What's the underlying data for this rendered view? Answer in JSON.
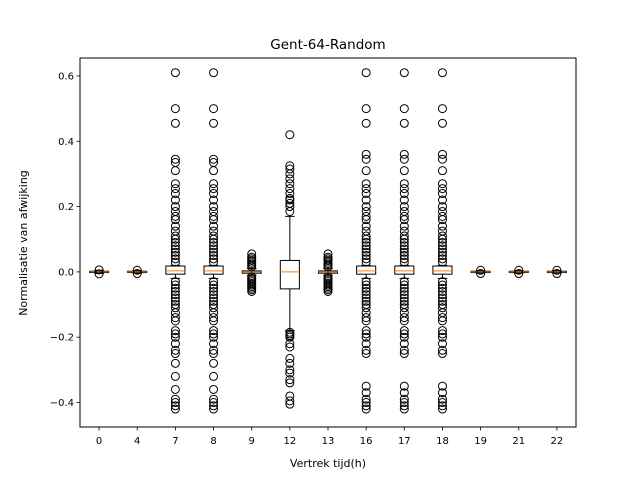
{
  "chart_data": {
    "type": "boxplot",
    "title": "Gent-64-Random",
    "xlabel": "Vertrek tijd(h)",
    "ylabel": "Normalisatie van afwijking",
    "ylim": [
      -0.475,
      0.655
    ],
    "yticks": [
      -0.4,
      -0.2,
      0.0,
      0.2,
      0.4,
      0.6
    ],
    "ytick_labels": [
      "−0.4",
      "−0.2",
      "0.0",
      "0.2",
      "0.4",
      "0.6"
    ],
    "grid": false,
    "colors": {
      "box": "#000000",
      "median": "#ff7f0e",
      "flier": "#000000"
    },
    "categories": [
      "0",
      "4",
      "7",
      "8",
      "9",
      "12",
      "13",
      "16",
      "17",
      "18",
      "19",
      "21",
      "22"
    ],
    "boxes": [
      {
        "q1": -0.002,
        "median": 0.0,
        "q3": 0.002,
        "whislo": -0.005,
        "whishi": 0.005,
        "fliers": [
          -0.006,
          0.006
        ]
      },
      {
        "q1": -0.002,
        "median": 0.0,
        "q3": 0.002,
        "whislo": -0.004,
        "whishi": 0.004,
        "fliers": [
          -0.005,
          0.005
        ]
      },
      {
        "q1": -0.007,
        "median": 0.003,
        "q3": 0.018,
        "whislo": -0.02,
        "whishi": 0.02,
        "fliers": [
          0.61,
          0.5,
          0.455,
          0.345,
          0.335,
          0.31,
          0.27,
          0.255,
          0.24,
          0.22,
          0.2,
          0.185,
          0.17,
          0.16,
          0.14,
          0.125,
          0.11,
          0.1,
          0.09,
          0.08,
          0.07,
          0.06,
          0.05,
          0.04,
          0.03,
          -0.03,
          -0.04,
          -0.05,
          -0.06,
          -0.07,
          -0.08,
          -0.09,
          -0.1,
          -0.11,
          -0.125,
          -0.14,
          -0.15,
          -0.18,
          -0.19,
          -0.2,
          -0.22,
          -0.24,
          -0.25,
          -0.28,
          -0.32,
          -0.36,
          -0.39,
          -0.4,
          -0.41,
          -0.42
        ]
      },
      {
        "q1": -0.007,
        "median": 0.003,
        "q3": 0.018,
        "whislo": -0.02,
        "whishi": 0.02,
        "fliers": [
          0.61,
          0.5,
          0.455,
          0.345,
          0.335,
          0.31,
          0.27,
          0.255,
          0.24,
          0.22,
          0.2,
          0.185,
          0.17,
          0.16,
          0.14,
          0.125,
          0.11,
          0.1,
          0.09,
          0.08,
          0.07,
          0.06,
          0.05,
          0.04,
          0.03,
          -0.03,
          -0.04,
          -0.05,
          -0.06,
          -0.07,
          -0.08,
          -0.09,
          -0.1,
          -0.11,
          -0.125,
          -0.14,
          -0.15,
          -0.18,
          -0.19,
          -0.2,
          -0.22,
          -0.24,
          -0.25,
          -0.28,
          -0.32,
          -0.36,
          -0.39,
          -0.4,
          -0.41,
          -0.42
        ]
      },
      {
        "q1": -0.004,
        "median": 0.0,
        "q3": 0.003,
        "whislo": -0.01,
        "whishi": 0.01,
        "fliers": [
          0.055,
          0.045,
          0.04,
          0.035,
          0.03,
          0.025,
          0.02,
          0.015,
          -0.015,
          -0.02,
          -0.025,
          -0.03,
          -0.035,
          -0.04,
          -0.045,
          -0.05,
          -0.055,
          -0.06
        ]
      },
      {
        "q1": -0.052,
        "median": 0.0,
        "q3": 0.035,
        "whislo": -0.18,
        "whishi": 0.17,
        "fliers": [
          0.42,
          0.325,
          0.315,
          0.3,
          0.285,
          0.27,
          0.255,
          0.24,
          0.225,
          0.22,
          0.21,
          0.2,
          0.185,
          -0.185,
          -0.19,
          -0.195,
          -0.2,
          -0.22,
          -0.23,
          -0.265,
          -0.28,
          -0.3,
          -0.31,
          -0.33,
          -0.34,
          -0.38,
          -0.395,
          -0.405
        ]
      },
      {
        "q1": -0.004,
        "median": 0.0,
        "q3": 0.003,
        "whislo": -0.01,
        "whishi": 0.01,
        "fliers": [
          0.055,
          0.045,
          0.04,
          0.035,
          0.03,
          0.025,
          0.02,
          0.015,
          -0.015,
          -0.02,
          -0.025,
          -0.03,
          -0.035,
          -0.04,
          -0.045,
          -0.05,
          -0.055,
          -0.06
        ]
      },
      {
        "q1": -0.007,
        "median": 0.003,
        "q3": 0.018,
        "whislo": -0.02,
        "whishi": 0.02,
        "fliers": [
          0.61,
          0.5,
          0.455,
          0.36,
          0.345,
          0.31,
          0.27,
          0.255,
          0.24,
          0.22,
          0.2,
          0.185,
          0.17,
          0.16,
          0.14,
          0.125,
          0.11,
          0.1,
          0.09,
          0.08,
          0.07,
          0.06,
          0.05,
          0.04,
          0.03,
          -0.03,
          -0.04,
          -0.05,
          -0.06,
          -0.07,
          -0.08,
          -0.09,
          -0.1,
          -0.11,
          -0.125,
          -0.14,
          -0.15,
          -0.18,
          -0.19,
          -0.2,
          -0.22,
          -0.24,
          -0.25,
          -0.35,
          -0.37,
          -0.39,
          -0.4,
          -0.41,
          -0.42
        ]
      },
      {
        "q1": -0.007,
        "median": 0.003,
        "q3": 0.018,
        "whislo": -0.02,
        "whishi": 0.02,
        "fliers": [
          0.61,
          0.5,
          0.455,
          0.36,
          0.345,
          0.31,
          0.27,
          0.255,
          0.24,
          0.22,
          0.2,
          0.185,
          0.17,
          0.16,
          0.14,
          0.125,
          0.11,
          0.1,
          0.09,
          0.08,
          0.07,
          0.06,
          0.05,
          0.04,
          0.03,
          -0.03,
          -0.04,
          -0.05,
          -0.06,
          -0.07,
          -0.08,
          -0.09,
          -0.1,
          -0.11,
          -0.125,
          -0.14,
          -0.15,
          -0.18,
          -0.19,
          -0.2,
          -0.22,
          -0.24,
          -0.25,
          -0.35,
          -0.37,
          -0.39,
          -0.4,
          -0.41,
          -0.42
        ]
      },
      {
        "q1": -0.007,
        "median": 0.003,
        "q3": 0.018,
        "whislo": -0.02,
        "whishi": 0.02,
        "fliers": [
          0.61,
          0.5,
          0.455,
          0.36,
          0.345,
          0.31,
          0.27,
          0.255,
          0.24,
          0.22,
          0.2,
          0.185,
          0.17,
          0.16,
          0.14,
          0.125,
          0.11,
          0.1,
          0.09,
          0.08,
          0.07,
          0.06,
          0.05,
          0.04,
          0.03,
          -0.03,
          -0.04,
          -0.05,
          -0.06,
          -0.07,
          -0.08,
          -0.09,
          -0.1,
          -0.11,
          -0.125,
          -0.14,
          -0.15,
          -0.18,
          -0.19,
          -0.2,
          -0.22,
          -0.24,
          -0.25,
          -0.35,
          -0.37,
          -0.39,
          -0.4,
          -0.41,
          -0.42
        ]
      },
      {
        "q1": -0.002,
        "median": 0.0,
        "q3": 0.002,
        "whislo": -0.004,
        "whishi": 0.004,
        "fliers": [
          -0.005,
          0.005
        ]
      },
      {
        "q1": -0.002,
        "median": 0.0,
        "q3": 0.002,
        "whislo": -0.004,
        "whishi": 0.004,
        "fliers": [
          -0.005,
          0.005
        ]
      },
      {
        "q1": -0.002,
        "median": 0.0,
        "q3": 0.002,
        "whislo": -0.004,
        "whishi": 0.004,
        "fliers": [
          -0.005,
          0.005
        ]
      }
    ]
  }
}
